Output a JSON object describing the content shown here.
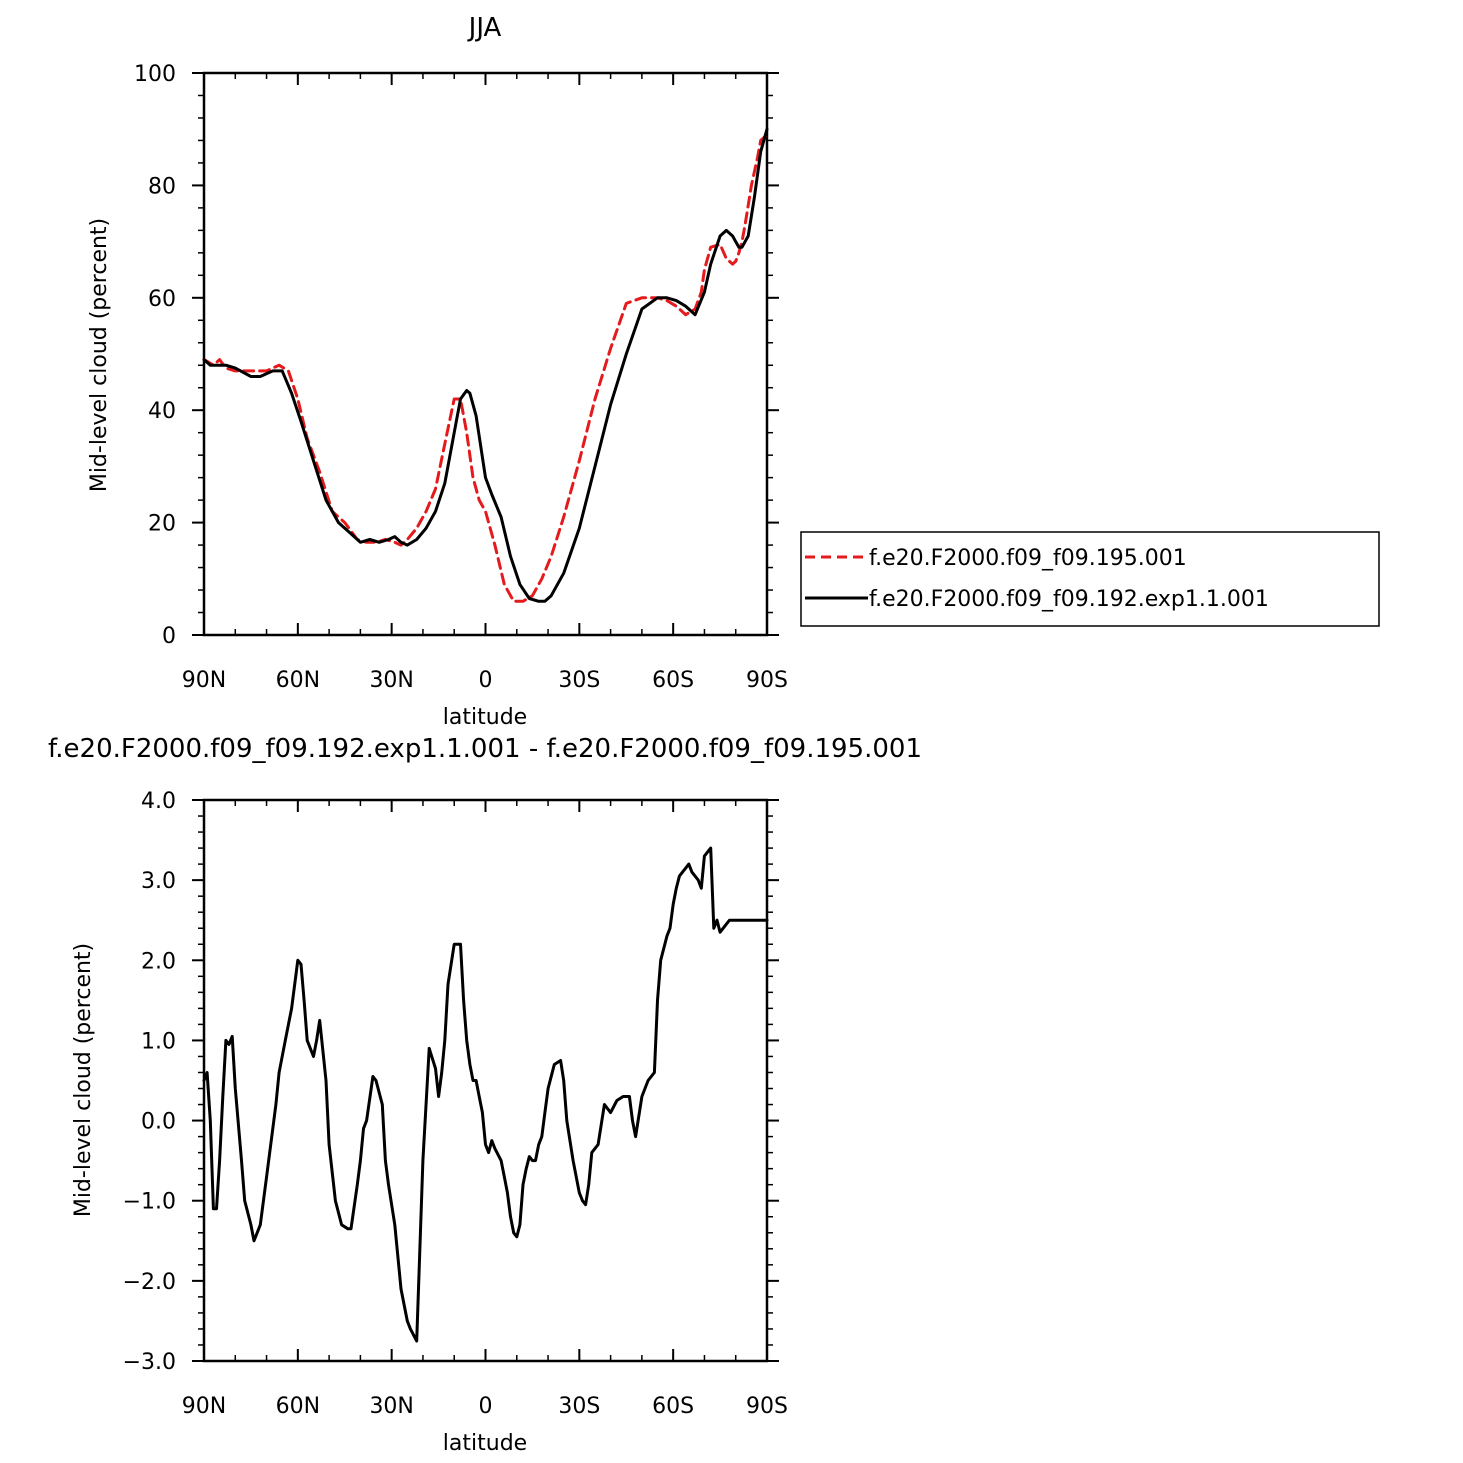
{
  "colors": {
    "control": "#e41a1c",
    "experiment": "#000000",
    "diff": "#000000"
  },
  "chart_data": [
    {
      "type": "line",
      "title": "JJA",
      "xlabel": "latitude",
      "ylabel": "Mid-level cloud (percent)",
      "xlim": [
        90,
        -90
      ],
      "ylim": [
        0,
        100
      ],
      "xticks": [
        90,
        60,
        30,
        0,
        -30,
        -60,
        -90
      ],
      "xtick_labels": [
        "90N",
        "60N",
        "30N",
        "0",
        "30S",
        "60S",
        "90S"
      ],
      "yticks": [
        0,
        20,
        40,
        60,
        80,
        100
      ],
      "ytick_labels": [
        "0",
        "20",
        "40",
        "60",
        "80",
        "100"
      ],
      "legend": "right",
      "series": [
        {
          "name": "f.e20.F2000.f09_f09.195.001",
          "style": "dashed",
          "color": "#e41a1c",
          "x": [
            90,
            87,
            85,
            83,
            80,
            75,
            70,
            66,
            63,
            60,
            57,
            53,
            49,
            45,
            41,
            38,
            35,
            32,
            29,
            27,
            25,
            22,
            19,
            16,
            13,
            10,
            8,
            6,
            4,
            2,
            0,
            -3,
            -6,
            -9,
            -12,
            -15,
            -18,
            -21,
            -25,
            -30,
            -35,
            -40,
            -45,
            -50,
            -55,
            -58,
            -61,
            -64,
            -67,
            -69,
            -70,
            -72,
            -75,
            -77,
            -79,
            -80,
            -81,
            -82,
            -83,
            -85,
            -87,
            -88,
            -90
          ],
          "y": [
            49,
            48,
            49,
            47.5,
            47,
            47,
            47,
            48,
            47,
            42,
            35,
            29,
            22,
            20,
            17,
            16.5,
            16.5,
            17,
            16.5,
            16,
            17,
            19,
            22,
            26,
            34,
            42,
            42,
            36,
            28,
            24,
            22,
            16,
            9,
            6,
            6,
            7,
            10,
            14,
            21,
            31,
            42,
            51,
            59,
            60,
            60,
            59.5,
            58.5,
            57,
            58,
            61,
            65,
            69,
            69.5,
            67,
            66,
            66.5,
            68,
            70,
            73,
            80,
            85,
            88,
            89
          ]
        },
        {
          "name": "f.e20.F2000.f09_f09.192.exp1.1.001",
          "style": "solid",
          "color": "#000000",
          "x": [
            90,
            88,
            86,
            83,
            80,
            75,
            72,
            68,
            65,
            62,
            59,
            55,
            51,
            47,
            43,
            40,
            37,
            34,
            31,
            29,
            27,
            25,
            22,
            19,
            16,
            13,
            10,
            8,
            6,
            5,
            3,
            0,
            -2,
            -5,
            -8,
            -11,
            -14,
            -17,
            -19,
            -21,
            -25,
            -30,
            -35,
            -40,
            -45,
            -50,
            -55,
            -58,
            -61,
            -64,
            -67,
            -70,
            -72,
            -75,
            -77,
            -79,
            -80,
            -81,
            -82,
            -84,
            -86,
            -88,
            -90
          ],
          "y": [
            49,
            48,
            48,
            48,
            47.5,
            46,
            46,
            47,
            47,
            43,
            38,
            31,
            24,
            20,
            18,
            16.5,
            17,
            16.5,
            17,
            17.5,
            16.5,
            16,
            17,
            19,
            22,
            27,
            36,
            42,
            43.5,
            43,
            39,
            28,
            25,
            21,
            14,
            9,
            6.5,
            6,
            6,
            7,
            11,
            19,
            30,
            41,
            50,
            58,
            60,
            60,
            59.5,
            58.5,
            57,
            61,
            66,
            71,
            72,
            71,
            70,
            69,
            69,
            71,
            78,
            86,
            90
          ]
        }
      ]
    },
    {
      "type": "line",
      "title": "f.e20.F2000.f09_f09.192.exp1.1.001 - f.e20.F2000.f09_f09.195.001",
      "xlabel": "latitude",
      "ylabel": "Mid-level cloud (percent)",
      "xlim": [
        90,
        -90
      ],
      "ylim": [
        -3.0,
        4.0
      ],
      "xticks": [
        90,
        60,
        30,
        0,
        -30,
        -60,
        -90
      ],
      "xtick_labels": [
        "90N",
        "60N",
        "30N",
        "0",
        "30S",
        "60S",
        "90S"
      ],
      "yticks": [
        -3,
        -2,
        -1,
        0,
        1,
        2,
        3,
        4
      ],
      "ytick_labels": [
        "−3.0",
        "−2.0",
        "−1.0",
        "0.0",
        "1.0",
        "2.0",
        "3.0",
        "4.0"
      ],
      "series": [
        {
          "color": "#000000",
          "x": [
            90,
            89,
            88,
            87,
            86,
            85,
            84,
            83,
            82,
            81,
            80,
            78,
            77,
            75,
            74,
            72,
            70,
            69,
            67,
            66,
            64,
            62,
            60,
            59,
            58,
            57,
            55,
            54,
            53,
            51,
            50,
            48,
            46,
            44,
            43,
            41,
            40,
            39,
            38,
            36,
            35,
            33,
            32,
            31,
            29,
            28,
            27,
            25,
            24,
            22,
            20,
            18,
            16,
            15,
            14,
            13,
            12,
            10,
            9,
            8,
            7,
            6,
            5,
            4,
            3,
            2,
            1,
            0,
            -1,
            -2,
            -3,
            -5,
            -6,
            -7,
            -8,
            -9,
            -10,
            -11,
            -12,
            -13,
            -14,
            -15,
            -16,
            -17,
            -18,
            -19,
            -20,
            -22,
            -24,
            -25,
            -26,
            -28,
            -30,
            -31,
            -32,
            -33,
            -34,
            -36,
            -38,
            -40,
            -42,
            -44,
            -46,
            -47,
            -48,
            -50,
            -52,
            -54,
            -55,
            -56,
            -58,
            -59,
            -60,
            -61,
            -62,
            -64,
            -65,
            -66,
            -68,
            -69,
            -70,
            -72,
            -73,
            -74,
            -75,
            -76,
            -77,
            -78,
            -79,
            -80,
            -81,
            -82,
            -83,
            -84,
            -85,
            -86,
            -87,
            -88,
            -89,
            -90
          ],
          "y": [
            0.5,
            0.6,
            0.0,
            -1.1,
            -1.1,
            -0.5,
            0.3,
            1.0,
            0.95,
            1.05,
            0.4,
            -0.5,
            -1.0,
            -1.3,
            -1.5,
            -1.3,
            -0.7,
            -0.4,
            0.2,
            0.6,
            1.0,
            1.4,
            2.0,
            1.95,
            1.5,
            1.0,
            0.8,
            1.0,
            1.25,
            0.5,
            -0.3,
            -1.0,
            -1.3,
            -1.35,
            -1.35,
            -0.8,
            -0.5,
            -0.1,
            0.0,
            0.55,
            0.5,
            0.2,
            -0.5,
            -0.8,
            -1.3,
            -1.7,
            -2.1,
            -2.5,
            -2.6,
            -2.75,
            -0.5,
            0.9,
            0.65,
            0.3,
            0.6,
            1.0,
            1.7,
            2.2,
            2.2,
            2.2,
            1.5,
            1.0,
            0.7,
            0.5,
            0.5,
            0.3,
            0.1,
            -0.3,
            -0.4,
            -0.25,
            -0.35,
            -0.5,
            -0.7,
            -0.9,
            -1.2,
            -1.4,
            -1.45,
            -1.3,
            -0.8,
            -0.6,
            -0.45,
            -0.5,
            -0.5,
            -0.3,
            -0.2,
            0.1,
            0.4,
            0.7,
            0.75,
            0.5,
            0.0,
            -0.5,
            -0.9,
            -1.0,
            -1.05,
            -0.8,
            -0.4,
            -0.3,
            0.2,
            0.1,
            0.25,
            0.3,
            0.3,
            0.0,
            -0.2,
            0.3,
            0.5,
            0.6,
            1.5,
            2.0,
            2.3,
            2.4,
            2.7,
            2.9,
            3.05,
            3.15,
            3.2,
            3.1,
            3.0,
            2.9,
            3.3,
            3.4,
            2.4,
            2.5,
            2.35,
            2.4,
            2.45,
            2.5,
            2.5,
            2.5,
            2.5,
            2.5,
            2.5,
            2.5,
            2.5,
            2.5,
            2.5,
            2.5,
            2.5,
            2.5
          ]
        }
      ]
    }
  ]
}
